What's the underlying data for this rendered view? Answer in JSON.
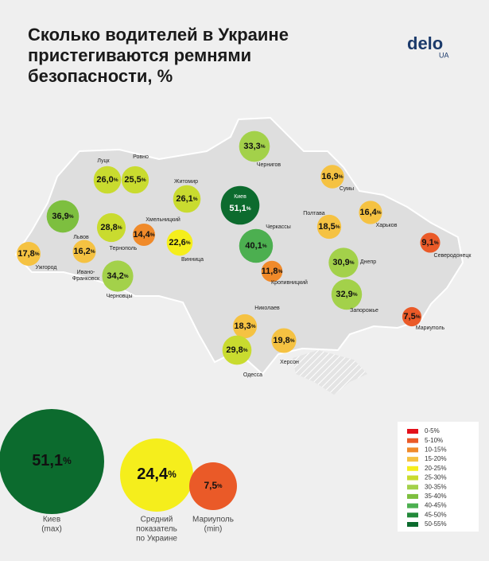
{
  "header": {
    "title_lines": [
      "Сколько водителей в Украине",
      "пристегиваются ремнями",
      "безопасности, %"
    ],
    "logo": "delo",
    "logo_sub": "UA"
  },
  "unit": "%",
  "cities": [
    {
      "name": [
        "Луцк"
      ],
      "value": 26.0,
      "label": "26,0",
      "color": "#c9db2f"
    },
    {
      "name": [
        "Ровно"
      ],
      "value": 25.5,
      "label": "25,5",
      "color": "#c9db2f"
    },
    {
      "name": [
        "Житомир"
      ],
      "value": 26.1,
      "label": "26,1",
      "color": "#c9db2f"
    },
    {
      "name": [
        "Киев"
      ],
      "value": 51.1,
      "label": "51,1",
      "color": "#0c6b2e"
    },
    {
      "name": [
        "Чернигов"
      ],
      "value": 33.3,
      "label": "33,3",
      "color": "#a3d14a"
    },
    {
      "name": [
        "Сумы"
      ],
      "value": 16.9,
      "label": "16,9",
      "color": "#f5c242"
    },
    {
      "name": [
        "Харьков"
      ],
      "value": 16.4,
      "label": "16,4",
      "color": "#f5c242"
    },
    {
      "name": [
        "Полтава"
      ],
      "value": 18.5,
      "label": "18,5",
      "color": "#f5c242"
    },
    {
      "name": [
        "Черкассы"
      ],
      "value": 40.1,
      "label": "40,1",
      "color": "#4caf50"
    },
    {
      "name": [
        "Северодонецк"
      ],
      "value": 9.1,
      "label": "9,1",
      "color": "#ea5a28"
    },
    {
      "name": [
        "Днепр"
      ],
      "value": 30.9,
      "label": "30,9",
      "color": "#a3d14a"
    },
    {
      "name": [
        "Кропивницкий"
      ],
      "value": 11.8,
      "label": "11,8",
      "color": "#f08a2a"
    },
    {
      "name": [
        "Запорожье"
      ],
      "value": 32.9,
      "label": "32,9",
      "color": "#a3d14a"
    },
    {
      "name": [
        "Мариуполь"
      ],
      "value": 7.5,
      "label": "7,5",
      "color": "#ea5a28"
    },
    {
      "name": [
        "Николаев"
      ],
      "value": 18.3,
      "label": "18,3",
      "color": "#f5c242"
    },
    {
      "name": [
        "Херсон"
      ],
      "value": 19.8,
      "label": "19,8",
      "color": "#f5c242"
    },
    {
      "name": [
        "Одесса"
      ],
      "value": 29.8,
      "label": "29,8",
      "color": "#c9db2f"
    },
    {
      "name": [
        "Винница"
      ],
      "value": 22.6,
      "label": "22,6",
      "color": "#f5ee1c"
    },
    {
      "name": [
        "Хмельницкий"
      ],
      "value": 14.4,
      "label": "14,4",
      "color": "#f08a2a"
    },
    {
      "name": [
        "Тернополь"
      ],
      "value": 28.8,
      "label": "28,8",
      "color": "#c9db2f"
    },
    {
      "name": [
        "Львов"
      ],
      "value": 36.9,
      "label": "36,9",
      "color": "#7dbf3f"
    },
    {
      "name": [
        "Ужгород"
      ],
      "value": 17.8,
      "label": "17,8",
      "color": "#f5c242"
    },
    {
      "name": [
        "Ивано-",
        "Франковск"
      ],
      "value": 16.2,
      "label": "16,2",
      "color": "#f5c242"
    },
    {
      "name": [
        "Черновцы"
      ],
      "value": 34.2,
      "label": "34,2",
      "color": "#a3d14a"
    }
  ],
  "summary": [
    {
      "value": 51.1,
      "label": "51,1",
      "color": "#0c6b2e",
      "text": [
        "Киев",
        "(max)"
      ]
    },
    {
      "value": 24.4,
      "label": "24,4",
      "color": "#f5ee1c",
      "text": [
        "Средний",
        "показатель",
        "по Украине"
      ]
    },
    {
      "value": 7.5,
      "label": "7,5",
      "color": "#ea5a28",
      "text": [
        "Мариуполь",
        "(min)"
      ]
    }
  ],
  "legend": [
    {
      "label": "0-5%",
      "color": "#e3101a"
    },
    {
      "label": "5-10%",
      "color": "#ea5a28"
    },
    {
      "label": "10-15%",
      "color": "#f08a2a"
    },
    {
      "label": "15-20%",
      "color": "#f5c242"
    },
    {
      "label": "20-25%",
      "color": "#f5ee1c"
    },
    {
      "label": "25-30%",
      "color": "#c9db2f"
    },
    {
      "label": "30-35%",
      "color": "#a3d14a"
    },
    {
      "label": "35-40%",
      "color": "#7dbf3f"
    },
    {
      "label": "40-45%",
      "color": "#4caf50"
    },
    {
      "label": "45-50%",
      "color": "#22893a"
    },
    {
      "label": "50-55%",
      "color": "#0c6b2e"
    }
  ]
}
